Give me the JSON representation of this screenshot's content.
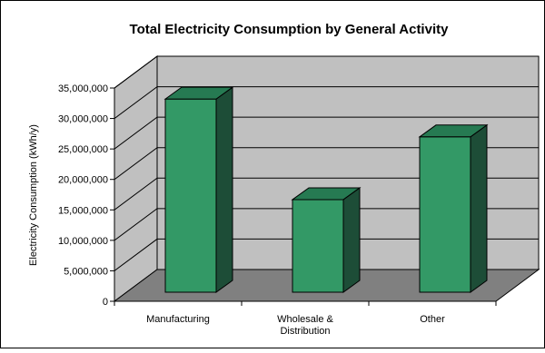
{
  "chart_data": {
    "type": "bar",
    "title": "Total Electricity Consumption by General Activity",
    "xlabel": "",
    "ylabel": "Electricity Consumption (kWh/y)",
    "ylim": [
      0,
      35000000
    ],
    "yticks": [
      0,
      5000000,
      10000000,
      15000000,
      20000000,
      25000000,
      30000000,
      35000000
    ],
    "ytick_labels": [
      "0",
      "5,000,000",
      "10,000,000",
      "15,000,000",
      "20,000,000",
      "25,000,000",
      "30,000,000",
      "35,000,000"
    ],
    "categories": [
      [
        "Manufacturing"
      ],
      [
        "Wholesale &",
        "Distribution"
      ],
      [
        "Other"
      ]
    ],
    "values": [
      31700000,
      15200000,
      25500000
    ],
    "grid": true,
    "legend": "none",
    "colors": {
      "bar_front": "#339966",
      "bar_top": "#267a52",
      "bar_side": "#1d4d37",
      "back_wall": "#c0c0c0",
      "side_wall": "#c0c0c0",
      "floor": "#808080"
    }
  }
}
